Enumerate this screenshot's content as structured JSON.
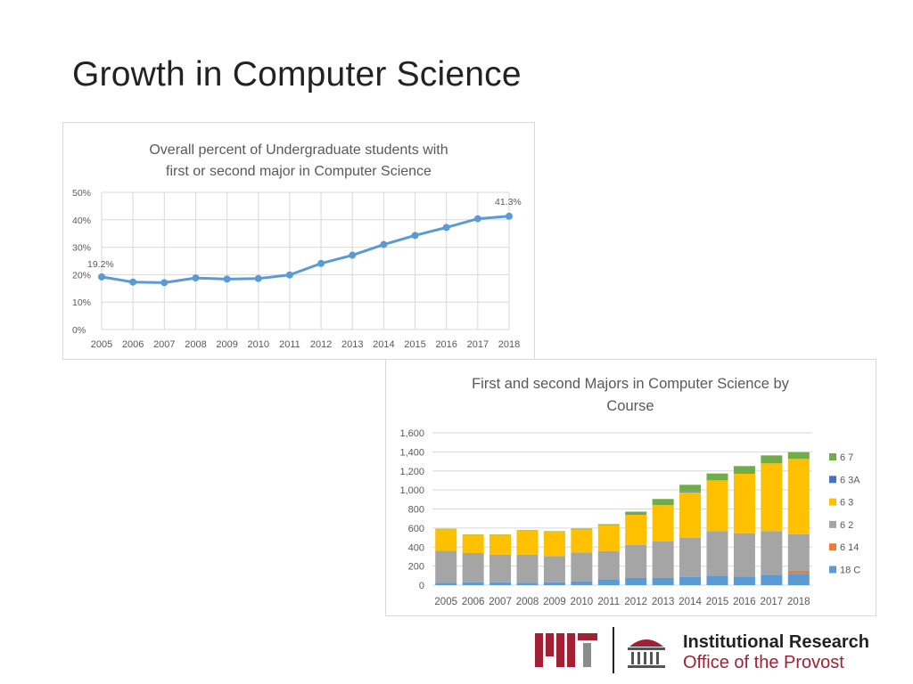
{
  "slide_title": "Growth in Computer Science",
  "chart_data": [
    {
      "type": "line",
      "title_lines": [
        "Overall percent of Undergraduate students with",
        "first or second major in Computer Science"
      ],
      "x": [
        "2005",
        "2006",
        "2007",
        "2008",
        "2009",
        "2010",
        "2011",
        "2012",
        "2013",
        "2014",
        "2015",
        "2016",
        "2017",
        "2018"
      ],
      "values": [
        19.2,
        17.3,
        17.1,
        18.8,
        18.4,
        18.6,
        19.9,
        24.1,
        27.1,
        31.0,
        34.3,
        37.2,
        40.4,
        41.3
      ],
      "ylim": [
        0,
        50
      ],
      "yticks": [
        "0%",
        "10%",
        "20%",
        "30%",
        "40%",
        "50%"
      ],
      "data_labels": {
        "first": "19.2%",
        "last": "41.3%"
      },
      "color": "#5b9bd5",
      "grid": true
    },
    {
      "type": "bar",
      "stacked": true,
      "title_lines": [
        "First and second Majors in Computer Science by",
        "Course"
      ],
      "categories": [
        "2005",
        "2006",
        "2007",
        "2008",
        "2009",
        "2010",
        "2011",
        "2012",
        "2013",
        "2014",
        "2015",
        "2016",
        "2017",
        "2018"
      ],
      "ylim": [
        0,
        1600
      ],
      "yticks": [
        "0",
        "200",
        "400",
        "600",
        "800",
        "1,000",
        "1,200",
        "1,400",
        "1,600"
      ],
      "legend_position": "right",
      "series": [
        {
          "name": "18 C",
          "color": "#5b9bd5",
          "values": [
            25,
            30,
            30,
            25,
            30,
            40,
            60,
            75,
            75,
            85,
            100,
            90,
            110,
            120
          ]
        },
        {
          "name": "6 14",
          "color": "#ed7d31",
          "values": [
            0,
            0,
            0,
            0,
            0,
            0,
            0,
            0,
            0,
            0,
            0,
            0,
            0,
            30
          ]
        },
        {
          "name": "6 2",
          "color": "#a5a5a5",
          "values": [
            335,
            307,
            291,
            296,
            276,
            303,
            299,
            349,
            387,
            414,
            468,
            456,
            458,
            386
          ]
        },
        {
          "name": "6 3",
          "color": "#ffc000",
          "values": [
            227,
            193,
            209,
            256,
            259,
            243,
            271,
            318,
            380,
            477,
            533,
            624,
            711,
            790
          ]
        },
        {
          "name": "6 3A",
          "color": "#4472c4",
          "values": [
            0,
            0,
            0,
            0,
            0,
            0,
            0,
            10,
            0,
            8,
            0,
            0,
            0,
            0
          ]
        },
        {
          "name": "6 7",
          "color": "#70ad47",
          "values": [
            5,
            3,
            3,
            3,
            3,
            8,
            10,
            20,
            63,
            70,
            72,
            81,
            84,
            71
          ]
        }
      ]
    }
  ],
  "logo": {
    "mit": "MIT",
    "line1": "Institutional Research",
    "line2": "Office of the Provost",
    "color": "#a31f34"
  }
}
